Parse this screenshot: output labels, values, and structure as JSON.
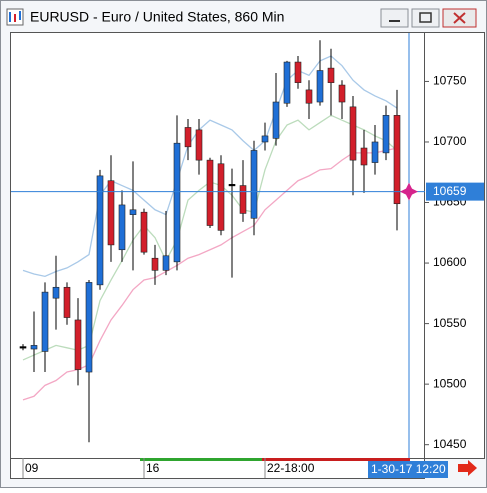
{
  "chart_data": {
    "type": "candlestick",
    "title": "EURUSD - Euro / United States, 860 Min",
    "categories": [
      "09",
      null,
      null,
      null,
      null,
      null,
      null,
      null,
      null,
      null,
      null,
      "16",
      null,
      null,
      null,
      null,
      null,
      null,
      null,
      null,
      null,
      null,
      "22-18:00",
      null,
      null,
      null,
      null,
      null,
      null,
      null,
      null,
      null,
      null,
      null,
      null
    ],
    "open": [
      10531,
      10529,
      10527,
      10571,
      10580,
      10553,
      10510,
      10582,
      10668,
      10611,
      10640,
      10642,
      10604,
      10594,
      10601,
      10712,
      10710,
      10685,
      10682,
      10665,
      10664,
      10637,
      10700,
      10703,
      10732,
      10766,
      10743,
      10733,
      10761,
      10747,
      10729,
      10695,
      10683,
      10691,
      10722
    ],
    "high": [
      10533,
      10560,
      10584,
      10606,
      10584,
      10571,
      10586,
      10677,
      10689,
      10660,
      10684,
      10645,
      10615,
      10643,
      10722,
      10719,
      10719,
      10687,
      10689,
      10678,
      10685,
      10701,
      10716,
      10757,
      10767,
      10771,
      10751,
      10784,
      10777,
      10751,
      10738,
      10710,
      10714,
      10730,
      10743
    ],
    "low": [
      10528,
      10510,
      10510,
      10545,
      10549,
      10499,
      10452,
      10578,
      10601,
      10601,
      10594,
      10607,
      10582,
      10590,
      10594,
      10685,
      10673,
      10629,
      10623,
      10588,
      10634,
      10623,
      10693,
      10697,
      10729,
      10744,
      10719,
      10730,
      10722,
      10719,
      10656,
      10658,
      10673,
      10685,
      10627
    ],
    "close": [
      10531,
      10532,
      10576,
      10580,
      10555,
      10512,
      10584,
      10672,
      10615,
      10648,
      10644,
      10609,
      10594,
      10606,
      10699,
      10696,
      10685,
      10631,
      10627,
      10665,
      10641,
      10693,
      10705,
      10733,
      10766,
      10749,
      10732,
      10759,
      10749,
      10733,
      10685,
      10681,
      10700,
      10722,
      10649
    ],
    "up_color": "#1f6fd6",
    "down_color": "#d21f2b",
    "series": [
      {
        "color": "#a9c9e8",
        "values": [
          10594,
          10591,
          10589,
          10593,
          10596,
          10601,
          10607,
          10656,
          10668,
          10664,
          10660,
          10652,
          10644,
          10640,
          10668,
          10697,
          10710,
          10718,
          10714,
          10710,
          10701,
          10693,
          10701,
          10726,
          10751,
          10759,
          10755,
          10767,
          10771,
          10763,
          10751,
          10743,
          10738,
          10734,
          10728
        ]
      },
      {
        "color": "#bcdcbc",
        "values": [
          10520,
          10524,
          10528,
          10532,
          10530,
          10528,
          10532,
          10569,
          10586,
          10602,
          10619,
          10631,
          10621,
          10602,
          10619,
          10652,
          10660,
          10667,
          10664,
          10656,
          10644,
          10642,
          10677,
          10701,
          10714,
          10718,
          10710,
          10716,
          10722,
          10718,
          10714,
          10710,
          10705,
          10701,
          10693
        ]
      },
      {
        "color": "#f3a7c4",
        "values": [
          10487,
          10490,
          10499,
          10503,
          10510,
          10512,
          10516,
          10536,
          10553,
          10565,
          10578,
          10586,
          10588,
          10593,
          10598,
          10604,
          10607,
          10611,
          10615,
          10621,
          10626,
          10631,
          10644,
          10652,
          10660,
          10668,
          10672,
          10677,
          10678,
          10685,
          10691,
          10691,
          10691,
          10693,
          10695
        ]
      }
    ],
    "ylim": [
      10439,
      10790
    ],
    "yticks": [
      10450,
      10500,
      10550,
      10600,
      10650,
      10700,
      10750
    ],
    "crosshair": {
      "value": 10659,
      "x_label": "1-30-17 12:20",
      "color": "#2f7fd8"
    }
  }
}
